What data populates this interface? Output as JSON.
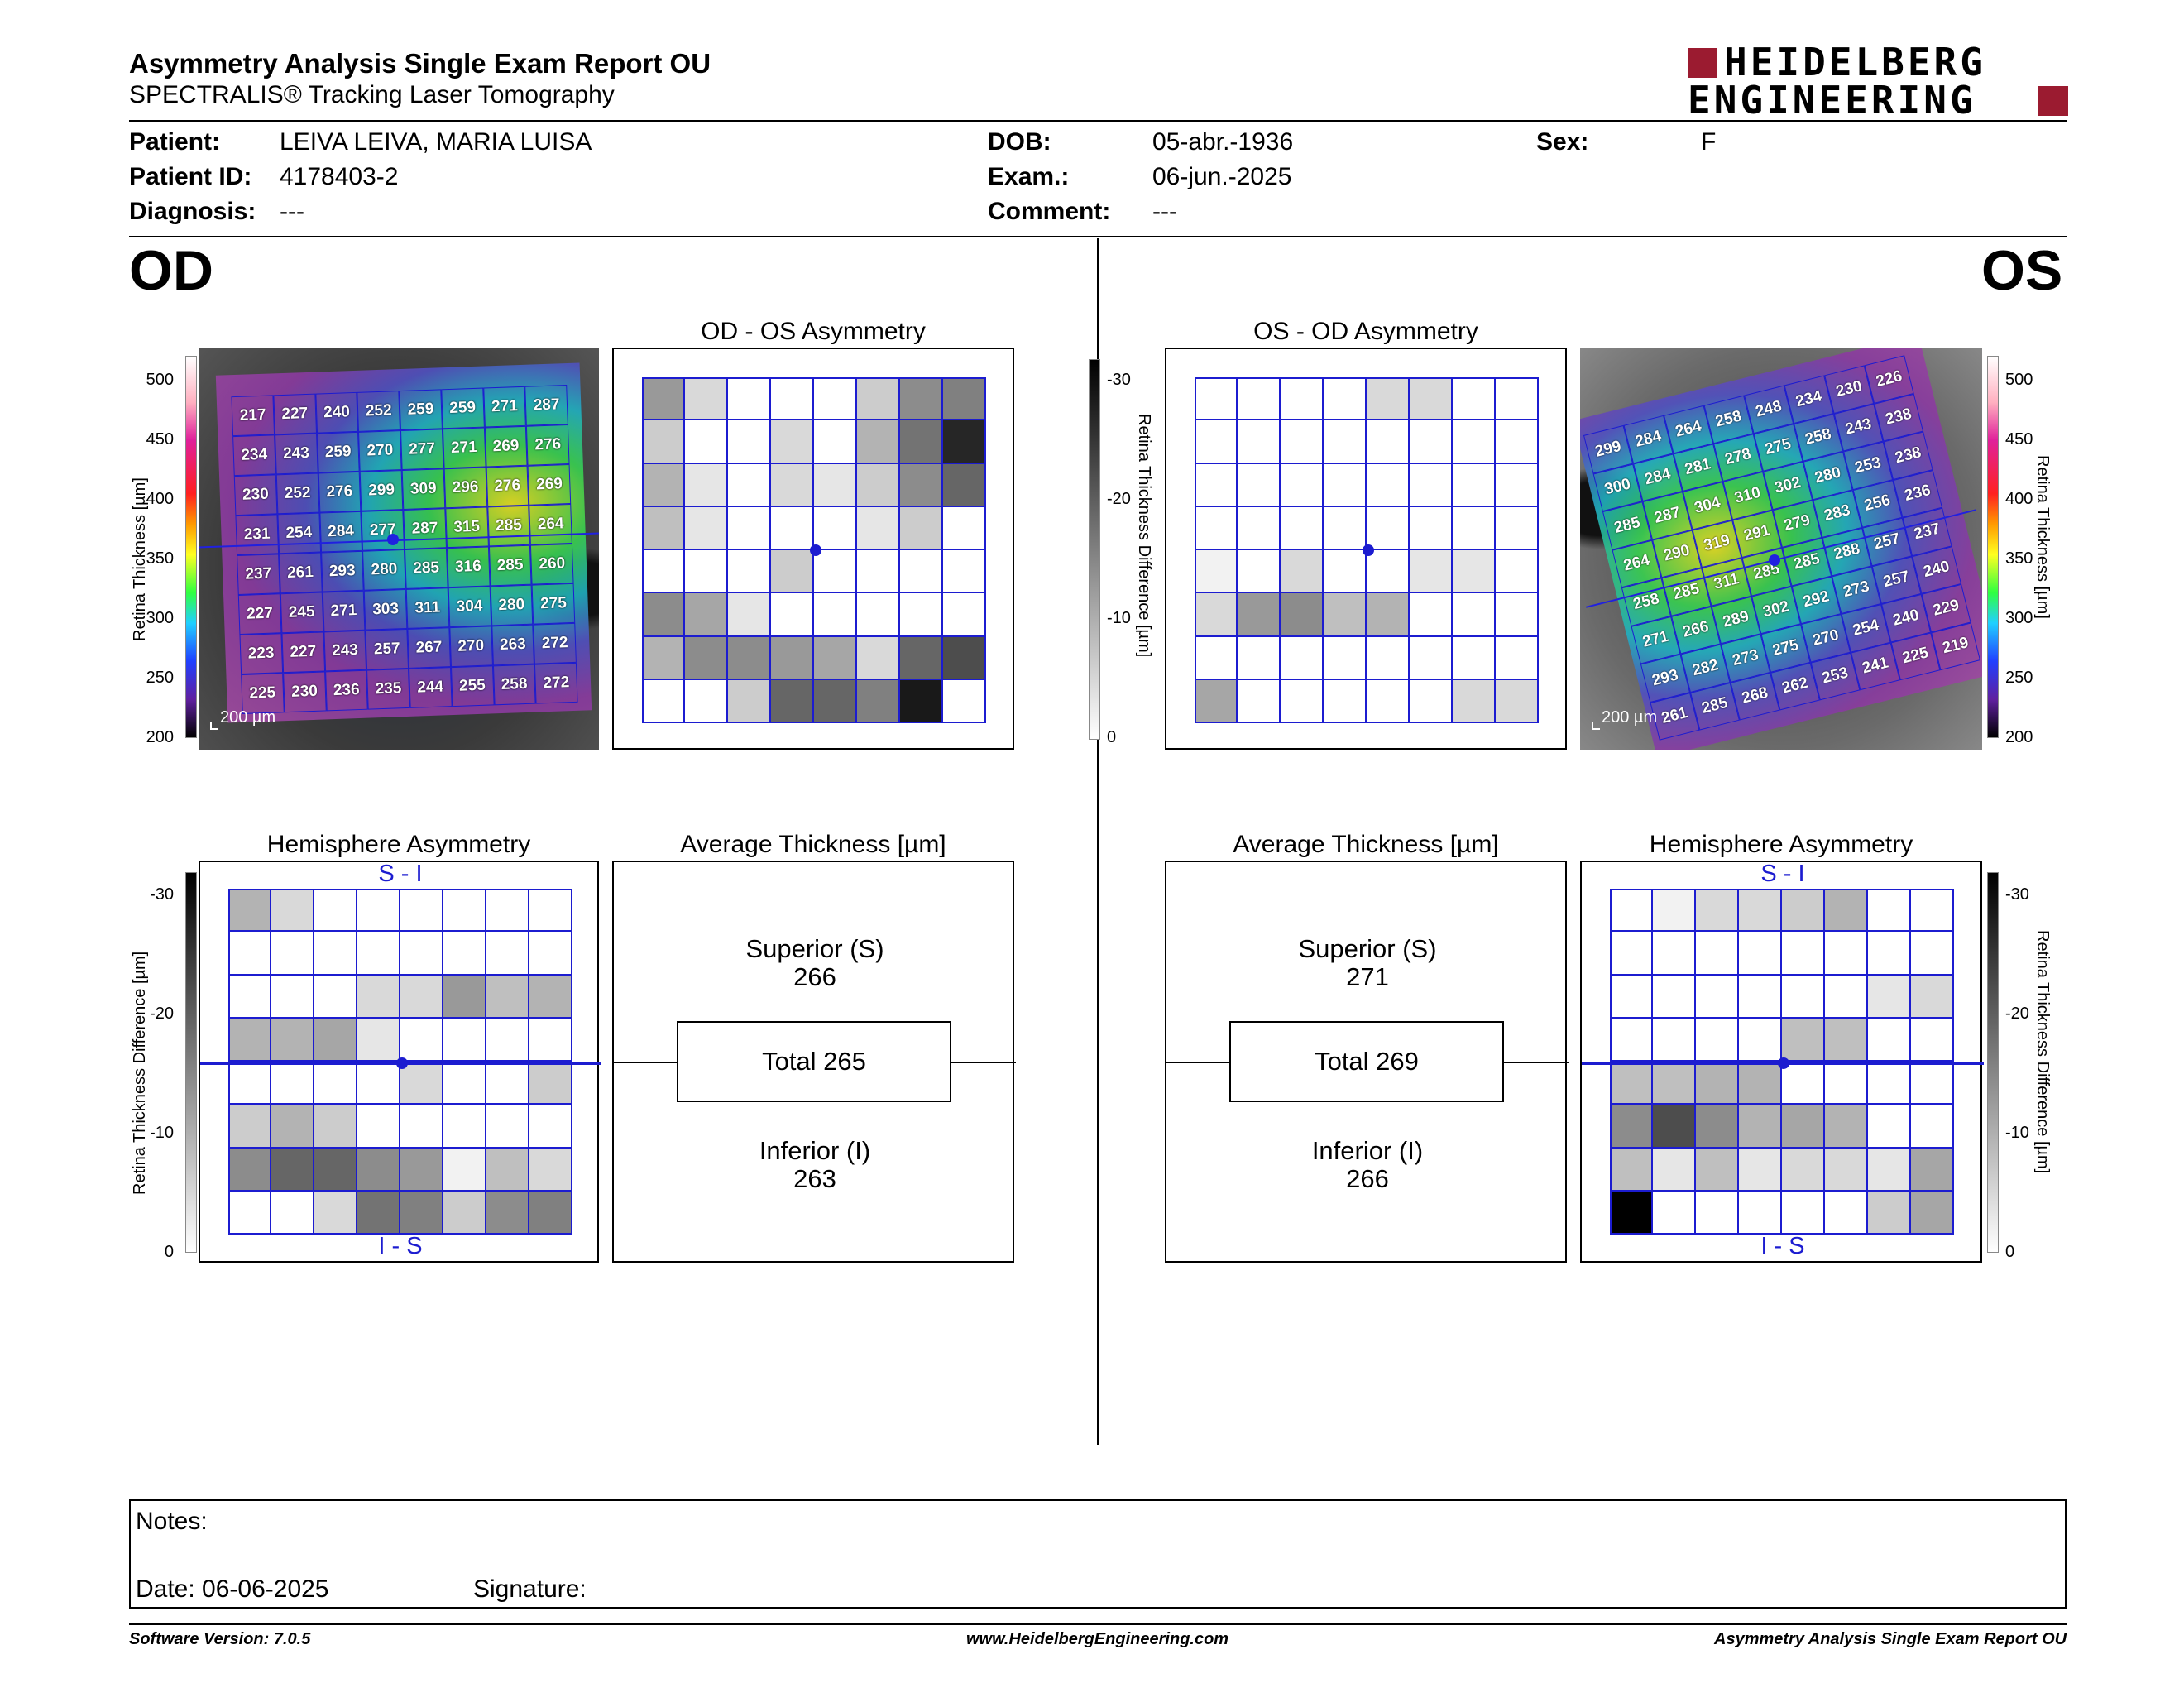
{
  "header": {
    "title": "Asymmetry Analysis Single Exam Report OU",
    "subtitle": "SPECTRALIS® Tracking Laser Tomography",
    "logo_line1": "HEIDELBERG",
    "logo_line2": "ENGINEERING"
  },
  "patient": {
    "patient_label": "Patient:",
    "patient_value": "LEIVA LEIVA, MARIA LUISA",
    "id_label": "Patient ID:",
    "id_value": "4178403-2",
    "diagnosis_label": "Diagnosis:",
    "diagnosis_value": "---",
    "dob_label": "DOB:",
    "dob_value": "05-abr.-1936",
    "exam_label": "Exam.:",
    "exam_value": "06-jun.-2025",
    "comment_label": "Comment:",
    "comment_value": "---",
    "sex_label": "Sex:",
    "sex_value": "F"
  },
  "od": {
    "eye_label": "OD",
    "asym_title": "OD - OS Asymmetry",
    "hemi_title": "Hemisphere Asymmetry",
    "avg_title": "Average Thickness [µm]",
    "hemi_top": "S - I",
    "hemi_bottom": "I - S",
    "superior_label": "Superior (S)",
    "superior_value": "266",
    "total_label": "Total 265",
    "inferior_label": "Inferior (I)",
    "inferior_value": "263",
    "scale_label": "200 µm",
    "thickness": [
      [
        217,
        227,
        240,
        252,
        259,
        259,
        271,
        287
      ],
      [
        234,
        243,
        259,
        270,
        277,
        271,
        269,
        276
      ],
      [
        230,
        252,
        276,
        299,
        309,
        296,
        276,
        269
      ],
      [
        231,
        254,
        284,
        277,
        287,
        315,
        285,
        264
      ],
      [
        237,
        261,
        293,
        280,
        285,
        316,
        285,
        260
      ],
      [
        227,
        245,
        271,
        303,
        311,
        304,
        280,
        275
      ],
      [
        223,
        227,
        243,
        257,
        267,
        270,
        263,
        272
      ],
      [
        225,
        230,
        236,
        235,
        244,
        255,
        258,
        272
      ]
    ],
    "asym_shade": [
      [
        0.4,
        0.15,
        0,
        0,
        0,
        0.2,
        0.45,
        0.5
      ],
      [
        0.2,
        0,
        0,
        0.15,
        0,
        0.3,
        0.55,
        0.85
      ],
      [
        0.3,
        0.1,
        0,
        0.15,
        0.1,
        0.2,
        0.45,
        0.6
      ],
      [
        0.25,
        0.1,
        0,
        0,
        0,
        0.1,
        0.2,
        0
      ],
      [
        0,
        0,
        0,
        0.2,
        0,
        0,
        0,
        0
      ],
      [
        0.45,
        0.35,
        0.1,
        0,
        0,
        0,
        0,
        0
      ],
      [
        0.3,
        0.45,
        0.45,
        0.4,
        0.35,
        0.15,
        0.6,
        0.7
      ],
      [
        0,
        0,
        0.2,
        0.6,
        0.6,
        0.5,
        0.9,
        0
      ]
    ],
    "hemi_shade": [
      [
        0.3,
        0.15,
        0,
        0,
        0,
        0,
        0,
        0
      ],
      [
        0,
        0,
        0,
        0,
        0,
        0,
        0,
        0
      ],
      [
        0,
        0,
        0,
        0.15,
        0.15,
        0.4,
        0.25,
        0.3
      ],
      [
        0.3,
        0.3,
        0.35,
        0.1,
        0,
        0,
        0,
        0
      ],
      [
        0,
        0,
        0,
        0,
        0.15,
        0,
        0,
        0.2
      ],
      [
        0.2,
        0.3,
        0.2,
        0,
        0,
        0,
        0,
        0
      ],
      [
        0.45,
        0.6,
        0.6,
        0.45,
        0.4,
        0.05,
        0.25,
        0.15
      ],
      [
        0,
        0,
        0.15,
        0.55,
        0.5,
        0.2,
        0.45,
        0.5
      ]
    ]
  },
  "os": {
    "eye_label": "OS",
    "asym_title": "OS - OD Asymmetry",
    "hemi_title": "Hemisphere Asymmetry",
    "avg_title": "Average Thickness [µm]",
    "hemi_top": "S - I",
    "hemi_bottom": "I - S",
    "superior_label": "Superior (S)",
    "superior_value": "271",
    "total_label": "Total 269",
    "inferior_label": "Inferior (I)",
    "inferior_value": "266",
    "scale_label": "200 µm",
    "thickness": [
      [
        299,
        284,
        264,
        258,
        248,
        234,
        230,
        226
      ],
      [
        300,
        284,
        281,
        278,
        275,
        258,
        243,
        238
      ],
      [
        285,
        287,
        304,
        310,
        302,
        280,
        253,
        238
      ],
      [
        264,
        290,
        319,
        291,
        279,
        283,
        256,
        236
      ],
      [
        258,
        285,
        311,
        285,
        285,
        288,
        257,
        237
      ],
      [
        271,
        266,
        289,
        302,
        292,
        273,
        257,
        240
      ],
      [
        293,
        282,
        273,
        275,
        270,
        254,
        240,
        229
      ],
      [
        261,
        285,
        268,
        262,
        253,
        241,
        225,
        219
      ]
    ],
    "asym_shade": [
      [
        0,
        0,
        0,
        0,
        0.15,
        0.15,
        0,
        0
      ],
      [
        0,
        0,
        0,
        0,
        0,
        0,
        0,
        0
      ],
      [
        0,
        0,
        0,
        0,
        0,
        0,
        0,
        0
      ],
      [
        0,
        0,
        0,
        0,
        0,
        0,
        0,
        0
      ],
      [
        0.05,
        0,
        0.15,
        0,
        0,
        0.1,
        0.1,
        0
      ],
      [
        0.15,
        0.4,
        0.45,
        0.25,
        0.3,
        0,
        0,
        0
      ],
      [
        0,
        0,
        0,
        0,
        0,
        0,
        0,
        0
      ],
      [
        0.35,
        0,
        0,
        0,
        0,
        0,
        0.15,
        0.15
      ]
    ],
    "hemi_shade": [
      [
        0,
        0.05,
        0.15,
        0.15,
        0.2,
        0.3,
        0,
        0
      ],
      [
        0,
        0,
        0,
        0,
        0,
        0,
        0,
        0
      ],
      [
        0,
        0,
        0,
        0,
        0,
        0,
        0.1,
        0.15
      ],
      [
        0,
        0,
        0,
        0,
        0.25,
        0.25,
        0,
        0
      ],
      [
        0.25,
        0.25,
        0.3,
        0.3,
        0,
        0,
        0,
        0
      ],
      [
        0.45,
        0.7,
        0.45,
        0.3,
        0.35,
        0.3,
        0,
        0
      ],
      [
        0.25,
        0.1,
        0.25,
        0.1,
        0.15,
        0.15,
        0.1,
        0.35
      ],
      [
        1,
        0,
        0,
        0,
        0,
        0,
        0.2,
        0.35
      ]
    ]
  },
  "scales": {
    "thickness_label": "Retina Thickness [µm]",
    "thickness_ticks": [
      "500",
      "450",
      "400",
      "350",
      "300",
      "250",
      "200"
    ],
    "diff_label": "Retina Thickness Difference [µm]",
    "diff_ticks": [
      "-30",
      "-20",
      "-10",
      "0"
    ]
  },
  "notes": {
    "notes_label": "Notes:",
    "date_label": "Date: 06-06-2025",
    "signature_label": "Signature:"
  },
  "footer": {
    "version": "Software Version: 7.0.5",
    "website": "www.HeidelbergEngineering.com",
    "report": "Asymmetry Analysis Single Exam Report OU"
  },
  "colors": {
    "grid_blue": "#1c1cd0",
    "logo_red": "#9b1b30"
  }
}
